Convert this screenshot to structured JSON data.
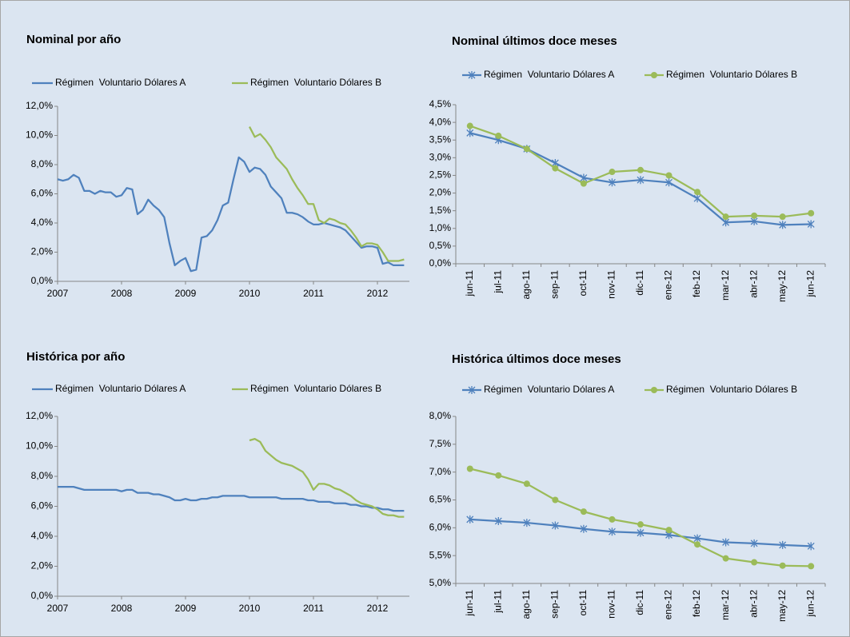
{
  "chart_data": [
    {
      "type": "line",
      "title": "Nominal por año",
      "x": [
        2007,
        2007.083,
        2007.167,
        2007.25,
        2007.333,
        2007.417,
        2007.5,
        2007.583,
        2007.667,
        2007.75,
        2007.833,
        2007.917,
        2008,
        2008.083,
        2008.167,
        2008.25,
        2008.333,
        2008.417,
        2008.5,
        2008.583,
        2008.667,
        2008.75,
        2008.833,
        2008.917,
        2009,
        2009.083,
        2009.167,
        2009.25,
        2009.333,
        2009.417,
        2009.5,
        2009.583,
        2009.667,
        2009.75,
        2009.833,
        2009.917,
        2010,
        2010.083,
        2010.167,
        2010.25,
        2010.333,
        2010.417,
        2010.5,
        2010.583,
        2010.667,
        2010.75,
        2010.833,
        2010.917,
        2011,
        2011.083,
        2011.167,
        2011.25,
        2011.333,
        2011.417,
        2011.5,
        2011.583,
        2011.667,
        2011.75,
        2011.833,
        2011.917,
        2012,
        2012.083,
        2012.167,
        2012.25,
        2012.333,
        2012.417
      ],
      "series": [
        {
          "name": "Régimen  Voluntario Dólares A",
          "color": "#4f81bd",
          "values": [
            7.0,
            6.9,
            7.0,
            7.3,
            7.1,
            6.2,
            6.2,
            6.0,
            6.2,
            6.1,
            6.1,
            5.8,
            5.9,
            6.4,
            6.3,
            4.6,
            4.9,
            5.6,
            5.2,
            4.9,
            4.4,
            2.6,
            1.1,
            1.4,
            1.6,
            0.7,
            0.8,
            3.0,
            3.1,
            3.5,
            4.2,
            5.2,
            5.4,
            7.0,
            8.5,
            8.2,
            7.5,
            7.8,
            7.7,
            7.3,
            6.5,
            6.1,
            5.7,
            4.7,
            4.7,
            4.6,
            4.4,
            4.1,
            3.9,
            3.9,
            4.0,
            3.9,
            3.8,
            3.7,
            3.5,
            3.1,
            2.7,
            2.3,
            2.4,
            2.4,
            2.3,
            1.2,
            1.3,
            1.1,
            1.1,
            1.1
          ]
        },
        {
          "name": "Régimen  Voluntario Dólares B",
          "color": "#9bbb59",
          "values": [
            null,
            null,
            null,
            null,
            null,
            null,
            null,
            null,
            null,
            null,
            null,
            null,
            null,
            null,
            null,
            null,
            null,
            null,
            null,
            null,
            null,
            null,
            null,
            null,
            null,
            null,
            null,
            null,
            null,
            null,
            null,
            null,
            null,
            null,
            null,
            null,
            10.6,
            9.9,
            10.1,
            9.7,
            9.2,
            8.5,
            8.1,
            7.7,
            7.0,
            6.4,
            5.9,
            5.3,
            5.3,
            4.2,
            4.0,
            4.3,
            4.2,
            4.0,
            3.9,
            3.5,
            3.0,
            2.4,
            2.6,
            2.6,
            2.5,
            2.0,
            1.4,
            1.4,
            1.4,
            1.5
          ]
        }
      ],
      "xlim": [
        2007,
        2012.5
      ],
      "xticks": [
        2007,
        2008,
        2009,
        2010,
        2011,
        2012
      ],
      "ylim": [
        0,
        12
      ],
      "yticks": [
        {
          "value": 0,
          "label": "0,0%"
        },
        {
          "value": 2,
          "label": "2,0%"
        },
        {
          "value": 4,
          "label": "4,0%"
        },
        {
          "value": 6,
          "label": "6,0%"
        },
        {
          "value": 8,
          "label": "8,0%"
        },
        {
          "value": 10,
          "label": "10,0%"
        },
        {
          "value": 12,
          "label": "12,0%"
        }
      ],
      "grid": false
    },
    {
      "type": "line",
      "title": "Nominal últimos doce meses",
      "categories": [
        "jun-11",
        "jul-11",
        "ago-11",
        "sep-11",
        "oct-11",
        "nov-11",
        "dic-11",
        "ene-12",
        "feb-12",
        "mar-12",
        "abr-12",
        "may-12",
        "jun-12"
      ],
      "series": [
        {
          "name": "Régimen  Voluntario Dólares A",
          "color": "#4f81bd",
          "marker": "star",
          "values": [
            3.7,
            3.5,
            3.25,
            2.85,
            2.43,
            2.3,
            2.37,
            2.3,
            1.85,
            1.17,
            1.2,
            1.1,
            1.12
          ]
        },
        {
          "name": "Régimen  Voluntario Dólares B",
          "color": "#9bbb59",
          "marker": "circle",
          "values": [
            3.9,
            3.62,
            3.25,
            2.7,
            2.27,
            2.6,
            2.65,
            2.5,
            2.03,
            1.33,
            1.36,
            1.33,
            1.43
          ]
        }
      ],
      "ylim": [
        0,
        4.5
      ],
      "yticks": [
        {
          "value": 0,
          "label": "0,0%"
        },
        {
          "value": 0.5,
          "label": "0,5%"
        },
        {
          "value": 1,
          "label": "1,0%"
        },
        {
          "value": 1.5,
          "label": "1,5%"
        },
        {
          "value": 2,
          "label": "2,0%"
        },
        {
          "value": 2.5,
          "label": "2,5%"
        },
        {
          "value": 3,
          "label": "3,0%"
        },
        {
          "value": 3.5,
          "label": "3,5%"
        },
        {
          "value": 4,
          "label": "4,0%"
        },
        {
          "value": 4.5,
          "label": "4,5%"
        }
      ],
      "grid": false
    },
    {
      "type": "line",
      "title": "Histórica por año",
      "x": [
        2007,
        2007.083,
        2007.167,
        2007.25,
        2007.333,
        2007.417,
        2007.5,
        2007.583,
        2007.667,
        2007.75,
        2007.833,
        2007.917,
        2008,
        2008.083,
        2008.167,
        2008.25,
        2008.333,
        2008.417,
        2008.5,
        2008.583,
        2008.667,
        2008.75,
        2008.833,
        2008.917,
        2009,
        2009.083,
        2009.167,
        2009.25,
        2009.333,
        2009.417,
        2009.5,
        2009.583,
        2009.667,
        2009.75,
        2009.833,
        2009.917,
        2010,
        2010.083,
        2010.167,
        2010.25,
        2010.333,
        2010.417,
        2010.5,
        2010.583,
        2010.667,
        2010.75,
        2010.833,
        2010.917,
        2011,
        2011.083,
        2011.167,
        2011.25,
        2011.333,
        2011.417,
        2011.5,
        2011.583,
        2011.667,
        2011.75,
        2011.833,
        2011.917,
        2012,
        2012.083,
        2012.167,
        2012.25,
        2012.333,
        2012.417
      ],
      "series": [
        {
          "name": "Régimen  Voluntario Dólares A",
          "color": "#4f81bd",
          "values": [
            7.3,
            7.3,
            7.3,
            7.3,
            7.2,
            7.1,
            7.1,
            7.1,
            7.1,
            7.1,
            7.1,
            7.1,
            7.0,
            7.1,
            7.1,
            6.9,
            6.9,
            6.9,
            6.8,
            6.8,
            6.7,
            6.6,
            6.4,
            6.4,
            6.5,
            6.4,
            6.4,
            6.5,
            6.5,
            6.6,
            6.6,
            6.7,
            6.7,
            6.7,
            6.7,
            6.7,
            6.6,
            6.6,
            6.6,
            6.6,
            6.6,
            6.6,
            6.5,
            6.5,
            6.5,
            6.5,
            6.5,
            6.4,
            6.4,
            6.3,
            6.3,
            6.3,
            6.2,
            6.2,
            6.2,
            6.1,
            6.1,
            6.0,
            6.0,
            5.9,
            5.9,
            5.8,
            5.8,
            5.7,
            5.7,
            5.7
          ]
        },
        {
          "name": "Régimen  Voluntario Dólares B",
          "color": "#9bbb59",
          "values": [
            null,
            null,
            null,
            null,
            null,
            null,
            null,
            null,
            null,
            null,
            null,
            null,
            null,
            null,
            null,
            null,
            null,
            null,
            null,
            null,
            null,
            null,
            null,
            null,
            null,
            null,
            null,
            null,
            null,
            null,
            null,
            null,
            null,
            null,
            null,
            null,
            10.4,
            10.5,
            10.3,
            9.7,
            9.4,
            9.1,
            8.9,
            8.8,
            8.7,
            8.5,
            8.3,
            7.8,
            7.1,
            7.5,
            7.5,
            7.4,
            7.2,
            7.1,
            6.9,
            6.7,
            6.4,
            6.2,
            6.1,
            6.0,
            5.8,
            5.5,
            5.4,
            5.4,
            5.3,
            5.3
          ]
        }
      ],
      "xlim": [
        2007,
        2012.5
      ],
      "xticks": [
        2007,
        2008,
        2009,
        2010,
        2011,
        2012
      ],
      "ylim": [
        0,
        12
      ],
      "yticks": [
        {
          "value": 0,
          "label": "0,0%"
        },
        {
          "value": 2,
          "label": "2,0%"
        },
        {
          "value": 4,
          "label": "4,0%"
        },
        {
          "value": 6,
          "label": "6,0%"
        },
        {
          "value": 8,
          "label": "8,0%"
        },
        {
          "value": 10,
          "label": "10,0%"
        },
        {
          "value": 12,
          "label": "12,0%"
        }
      ],
      "grid": false
    },
    {
      "type": "line",
      "title": "Histórica últimos doce meses",
      "categories": [
        "jun-11",
        "jul-11",
        "ago-11",
        "sep-11",
        "oct-11",
        "nov-11",
        "dic-11",
        "ene-12",
        "feb-12",
        "mar-12",
        "abr-12",
        "may-12",
        "jun-12"
      ],
      "series": [
        {
          "name": "Régimen  Voluntario Dólares A",
          "color": "#4f81bd",
          "marker": "star",
          "values": [
            6.15,
            6.12,
            6.09,
            6.04,
            5.98,
            5.93,
            5.91,
            5.87,
            5.81,
            5.74,
            5.72,
            5.69,
            5.67
          ]
        },
        {
          "name": "Régimen  Voluntario Dólares B",
          "color": "#9bbb59",
          "marker": "circle",
          "values": [
            7.06,
            6.94,
            6.79,
            6.5,
            6.29,
            6.15,
            6.06,
            5.96,
            5.7,
            5.45,
            5.38,
            5.32,
            5.31
          ]
        }
      ],
      "ylim": [
        5,
        8
      ],
      "yticks": [
        {
          "value": 5,
          "label": "5,0%"
        },
        {
          "value": 5.5,
          "label": "5,5%"
        },
        {
          "value": 6,
          "label": "6,0%"
        },
        {
          "value": 6.5,
          "label": "6,5%"
        },
        {
          "value": 7,
          "label": "7,0%"
        },
        {
          "value": 7.5,
          "label": "7,5%"
        },
        {
          "value": 8,
          "label": "8,0%"
        }
      ],
      "grid": false
    }
  ]
}
